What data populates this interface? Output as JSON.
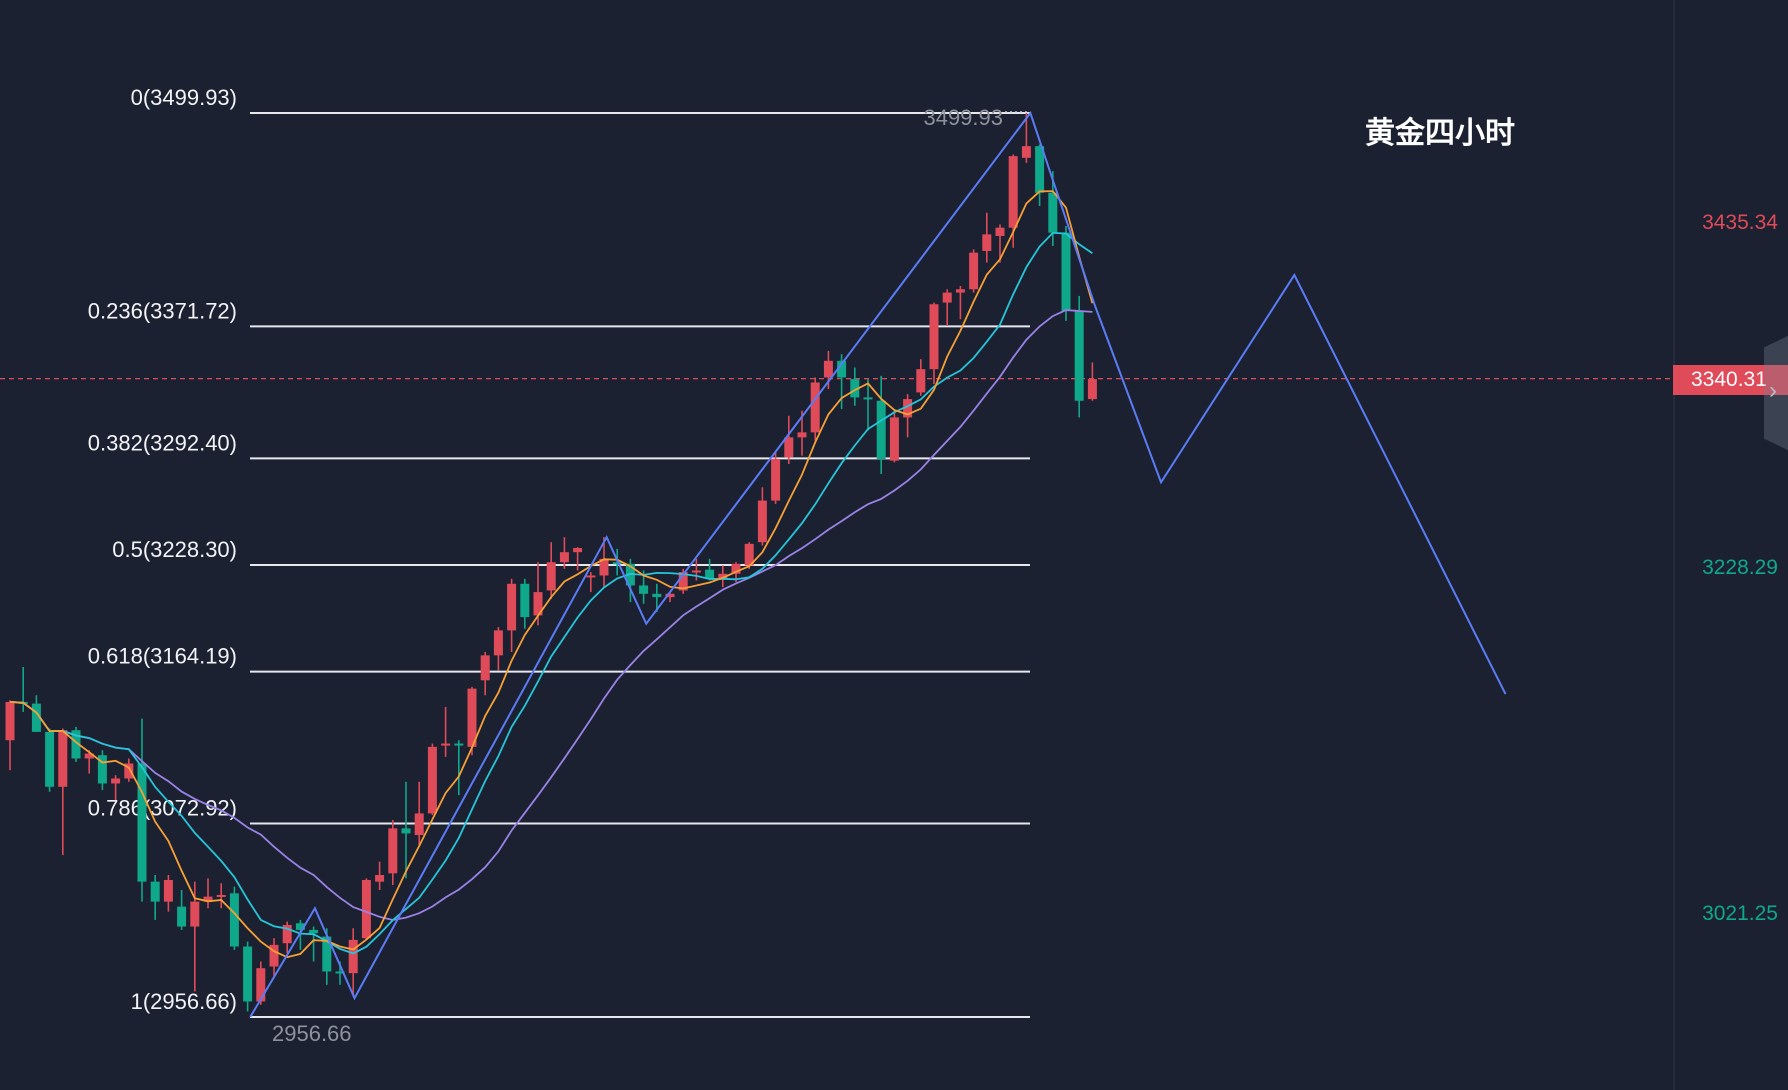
{
  "title": "黄金四小时",
  "colors": {
    "background": "#1b2130",
    "up": "#e04b5a",
    "down": "#10a88a",
    "ma_fast": "#f7a035",
    "ma_mid": "#26c6da",
    "ma_slow": "#9b82e6",
    "zigzag": "#5b7cf7",
    "fib_line": "#e6e8ee",
    "current_price": "#e04b5a"
  },
  "axis": {
    "labels": [
      {
        "text": "3435.34",
        "color": "#e04b5a"
      },
      {
        "text": "3228.29",
        "color": "#10a88a"
      },
      {
        "text": "3021.25",
        "color": "#10a88a"
      }
    ],
    "current_price": "3340.31",
    "collapse_icon": "chevron-right-icon"
  },
  "chart_data": {
    "type": "candlestick",
    "title": "黄金四小时",
    "ylim": [
      2900,
      3560
    ],
    "current_price": 3340.31,
    "fibonacci": [
      {
        "ratio": 0,
        "price": 3499.93,
        "label": "0(3499.93)"
      },
      {
        "ratio": 0.236,
        "price": 3371.72,
        "label": "0.236(3371.72)"
      },
      {
        "ratio": 0.382,
        "price": 3292.4,
        "label": "0.382(3292.40)"
      },
      {
        "ratio": 0.5,
        "price": 3228.3,
        "label": "0.5(3228.30)"
      },
      {
        "ratio": 0.618,
        "price": 3164.19,
        "label": "0.618(3164.19)"
      },
      {
        "ratio": 0.786,
        "price": 3072.92,
        "label": "0.786(3072.92)"
      },
      {
        "ratio": 1,
        "price": 2956.66,
        "label": "1(2956.66)"
      }
    ],
    "extreme_labels": {
      "high": "3499.93",
      "low": "2956.66"
    },
    "candles": [
      [
        3123,
        3147,
        3105,
        3146
      ],
      [
        3146,
        3167,
        3140,
        3145
      ],
      [
        3145,
        3150,
        3128,
        3128
      ],
      [
        3128,
        3130,
        3092,
        3095
      ],
      [
        3095,
        3130,
        3054,
        3129
      ],
      [
        3129,
        3131,
        3110,
        3112
      ],
      [
        3112,
        3117,
        3103,
        3115
      ],
      [
        3114,
        3117,
        3093,
        3097
      ],
      [
        3097,
        3102,
        3087,
        3100
      ],
      [
        3100,
        3112,
        3098,
        3109
      ],
      [
        3109,
        3136,
        3026,
        3038
      ],
      [
        3038,
        3042,
        3015,
        3026
      ],
      [
        3026,
        3042,
        3020,
        3039
      ],
      [
        3023,
        3033,
        3009,
        3011
      ],
      [
        3011,
        3038,
        2972,
        3026
      ],
      [
        3026,
        3040,
        3022,
        3029
      ],
      [
        3029,
        3037,
        3022,
        3030
      ],
      [
        3031,
        3035,
        2997,
        2999
      ],
      [
        2999,
        3002,
        2960,
        2966
      ],
      [
        2966,
        2990,
        2964,
        2986
      ],
      [
        2987,
        3004,
        2980,
        3000
      ],
      [
        3001,
        3014,
        2995,
        3012
      ],
      [
        3013,
        3015,
        2997,
        3009
      ],
      [
        3009,
        3011,
        2990,
        3007
      ],
      [
        3005,
        3010,
        2976,
        2984
      ],
      [
        2984,
        2990,
        2976,
        2983
      ],
      [
        2983,
        3010,
        2970,
        3003
      ],
      [
        3004,
        3040,
        3003,
        3039
      ],
      [
        3038,
        3050,
        3033,
        3042
      ],
      [
        3043,
        3075,
        3036,
        3070
      ],
      [
        3070,
        3098,
        3040,
        3067
      ],
      [
        3066,
        3098,
        3060,
        3079
      ],
      [
        3079,
        3121,
        3078,
        3119
      ],
      [
        3120,
        3143,
        3113,
        3121
      ],
      [
        3121,
        3123,
        3090,
        3120
      ],
      [
        3119,
        3155,
        3114,
        3154
      ],
      [
        3159,
        3176,
        3150,
        3174
      ],
      [
        3174,
        3191,
        3165,
        3189
      ],
      [
        3189,
        3220,
        3176,
        3217
      ],
      [
        3217,
        3220,
        3190,
        3197
      ],
      [
        3198,
        3230,
        3192,
        3212
      ],
      [
        3213,
        3242,
        3208,
        3230
      ],
      [
        3230,
        3245,
        3226,
        3236
      ],
      [
        3236,
        3239,
        3225,
        3238.5
      ],
      [
        3221,
        3224,
        3212,
        3222
      ],
      [
        3222,
        3245,
        3215,
        3232
      ],
      [
        3230,
        3238,
        3222,
        3229
      ],
      [
        3229,
        3232,
        3206,
        3216
      ],
      [
        3216,
        3225,
        3205,
        3211
      ],
      [
        3211,
        3217,
        3200,
        3209
      ],
      [
        3209,
        3212,
        3206,
        3211
      ],
      [
        3213,
        3226,
        3211,
        3224
      ],
      [
        3224,
        3232,
        3219,
        3225
      ],
      [
        3225.5,
        3232,
        3219,
        3220
      ],
      [
        3220,
        3228,
        3215,
        3223
      ],
      [
        3223,
        3230,
        3218,
        3229
      ],
      [
        3228,
        3242,
        3226,
        3241
      ],
      [
        3242,
        3275,
        3240,
        3267
      ],
      [
        3267,
        3296,
        3265,
        3292
      ],
      [
        3293,
        3318,
        3289,
        3305
      ],
      [
        3305,
        3321,
        3294,
        3308
      ],
      [
        3308,
        3341,
        3303,
        3338
      ],
      [
        3341,
        3357,
        3334,
        3351
      ],
      [
        3351,
        3355,
        3322,
        3341
      ],
      [
        3340,
        3347,
        3324,
        3329
      ],
      [
        3329,
        3340,
        3309,
        3328
      ],
      [
        3327,
        3342,
        3283,
        3292
      ],
      [
        3291,
        3321,
        3290,
        3317
      ],
      [
        3317,
        3331,
        3305,
        3328
      ],
      [
        3332,
        3352,
        3330,
        3346
      ],
      [
        3346,
        3386,
        3337,
        3385
      ],
      [
        3386,
        3394,
        3372,
        3392
      ],
      [
        3392,
        3396,
        3376,
        3394
      ],
      [
        3394,
        3418,
        3392,
        3416
      ],
      [
        3417,
        3440,
        3410,
        3427
      ],
      [
        3426,
        3433,
        3410,
        3431
      ],
      [
        3431,
        3475,
        3419,
        3474
      ],
      [
        3473,
        3499.93,
        3470,
        3480
      ],
      [
        3480,
        3481,
        3444,
        3452
      ],
      [
        3452,
        3465,
        3420,
        3428
      ],
      [
        3428,
        3432,
        3375,
        3381
      ],
      [
        3381,
        3390,
        3317,
        3327
      ],
      [
        3328,
        3350,
        3327,
        3340
      ]
    ],
    "zigzag": [
      [
        18.2,
        2956.66
      ],
      [
        23.1,
        3022
      ],
      [
        26.1,
        2968
      ],
      [
        45.2,
        3245
      ],
      [
        48.2,
        3193
      ],
      [
        77.3,
        3499.93
      ],
      [
        82.2,
        3384
      ],
      [
        87.2,
        3278
      ],
      [
        97.3,
        3402.6
      ],
      [
        113.3,
        3150.7
      ]
    ]
  }
}
